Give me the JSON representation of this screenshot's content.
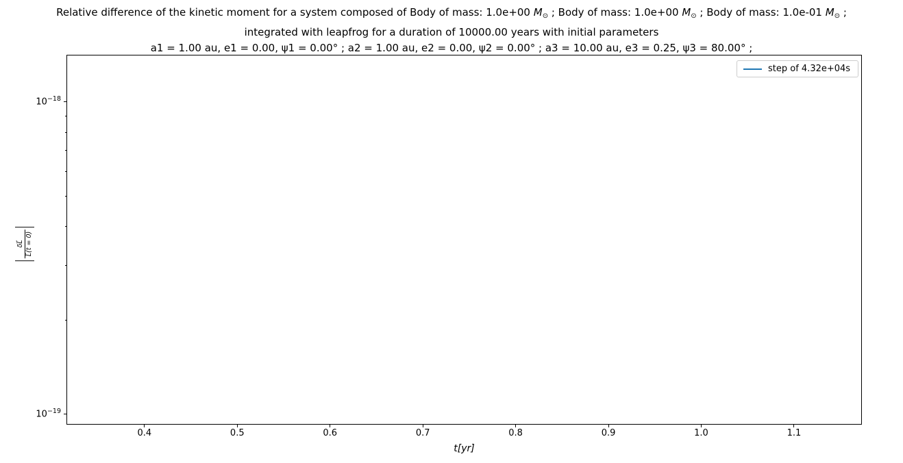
{
  "title": {
    "line1_segments": [
      {
        "type": "text",
        "text": "Relative difference of the kinetic moment for a system composed of Body of mass: 1.0e+00 "
      },
      {
        "type": "msun",
        "main": "M",
        "sub": "⊙"
      },
      {
        "type": "text",
        "text": " ; Body of mass: 1.0e+00 "
      },
      {
        "type": "msun",
        "main": "M",
        "sub": "⊙"
      },
      {
        "type": "text",
        "text": " ; Body of mass: 1.0e-01 "
      },
      {
        "type": "msun",
        "main": "M",
        "sub": "⊙"
      },
      {
        "type": "text",
        "text": " ;"
      }
    ],
    "line2": "integrated with leapfrog for a duration of 10000.00 years with initial parameters",
    "line3": "a1 = 1.00 au, e1 = 0.00, ψ1 = 0.00° ; a2 = 1.00 au, e2 = 0.00, ψ2 = 0.00° ; a3 = 10.00 au, e3 = 0.25, ψ3 = 80.00° ;"
  },
  "legend": {
    "label": "step of 4.32e+04s",
    "line_color": "#1f77b4",
    "position": "upper right"
  },
  "axes": {
    "xlabel": "t[yr]",
    "ylabel_numerator": "δL⃗",
    "ylabel_denominator": "L⃗(t = 0)"
  },
  "chart_data": {
    "type": "line",
    "title": "Relative difference of the kinetic moment for a system composed of Body of mass: 1.0e+00 M⊙ ; Body of mass: 1.0e+00 M⊙ ; Body of mass: 1.0e-01 M⊙ ; integrated with leapfrog for a duration of 10000.00 years with initial parameters a1 = 1.00 au, e1 = 0.00, ψ1 = 0.00° ; a2 = 1.00 au, e2 = 0.00, ψ2 = 0.00° ; a3 = 10.00 au, e3 = 0.25, ψ3 = 80.00° ;",
    "xlabel": "t[yr]",
    "ylabel": "|δL⃗/L⃗(t=0)|",
    "xscale": "linear",
    "yscale": "log",
    "xlim": [
      0.3167,
      1.1724
    ],
    "ylim": [
      9.3e-20,
      1.41e-18
    ],
    "grid": false,
    "legend_position": "upper right",
    "x_ticks": [
      {
        "value": 0.4,
        "label": "0.4"
      },
      {
        "value": 0.5,
        "label": "0.5"
      },
      {
        "value": 0.6,
        "label": "0.6"
      },
      {
        "value": 0.7,
        "label": "0.7"
      },
      {
        "value": 0.8,
        "label": "0.8"
      },
      {
        "value": 0.9,
        "label": "0.9"
      },
      {
        "value": 1.0,
        "label": "1.0"
      },
      {
        "value": 1.1,
        "label": "1.1"
      }
    ],
    "y_major_ticks": [
      {
        "value": 1e-18,
        "base": "10",
        "exp": "−18"
      },
      {
        "value": 1e-19,
        "base": "10",
        "exp": "−19"
      }
    ],
    "y_minor_tick_values": [
      9e-19,
      8e-19,
      7e-19,
      6e-19,
      5e-19,
      4e-19,
      3e-19,
      2e-19
    ],
    "series": [
      {
        "name": "step of 4.32e+04s",
        "color": "#1f77b4",
        "visible_points": []
      }
    ]
  }
}
